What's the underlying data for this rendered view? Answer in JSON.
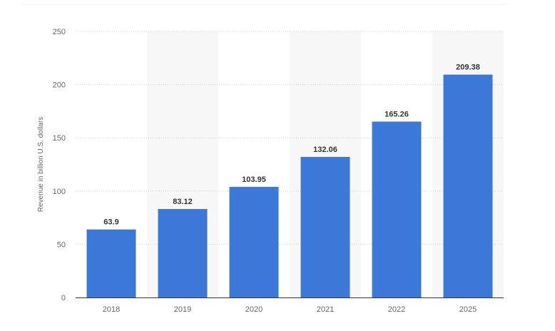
{
  "chart_data": {
    "type": "bar",
    "title": "",
    "xlabel": "",
    "ylabel": "Revenue in billion U.S. dollars",
    "categories": [
      "2018",
      "2019",
      "2020",
      "2021",
      "2022",
      "2025"
    ],
    "values": [
      63.9,
      83.12,
      103.95,
      132.06,
      165.26,
      209.38
    ],
    "data_labels": [
      "63.9",
      "83.12",
      "103.95",
      "132.06",
      "165.26",
      "209.38"
    ],
    "y_ticks": [
      0,
      50,
      100,
      150,
      200,
      250
    ],
    "ylim": [
      0,
      250
    ],
    "grid": true,
    "legend": false,
    "colors": {
      "bar": "#3c78d8",
      "band": "#f7f7f7",
      "grid": "#cfcfcf",
      "axis": "#333333"
    }
  }
}
